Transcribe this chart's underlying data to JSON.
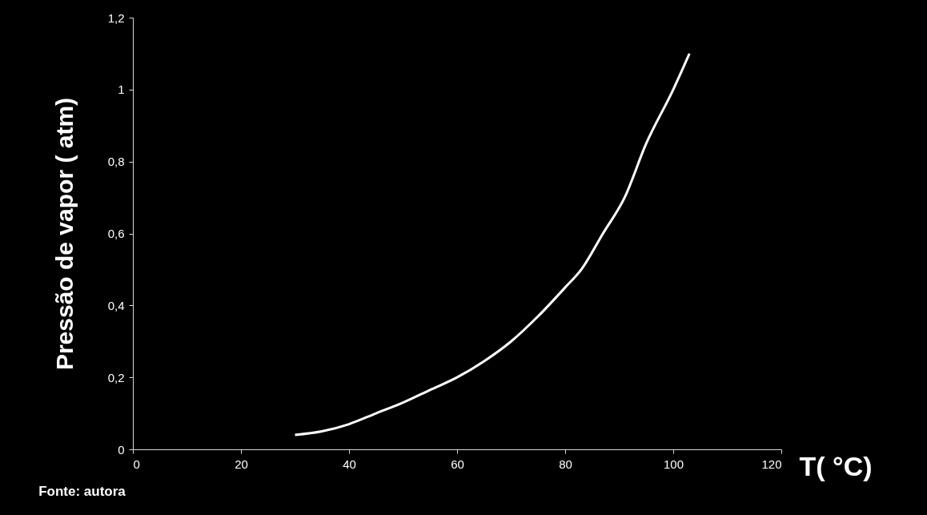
{
  "chart_data": {
    "type": "line",
    "xlabel": "T( °C)",
    "ylabel": "Pressão de vapor ( atm)",
    "annotations": [
      "Fonte: autora"
    ],
    "x": [
      30,
      35,
      40,
      45,
      50,
      55,
      60,
      65,
      70,
      75,
      80,
      83,
      87,
      91,
      95,
      100,
      103
    ],
    "series": [
      {
        "color": "#ffffff",
        "values": [
          0.04,
          0.05,
          0.07,
          0.1,
          0.13,
          0.165,
          0.2,
          0.245,
          0.3,
          0.37,
          0.45,
          0.5,
          0.6,
          0.7,
          0.85,
          1.0,
          1.1
        ]
      }
    ],
    "xlim": [
      0,
      120
    ],
    "xticks": [
      0,
      20,
      40,
      60,
      80,
      100,
      120
    ],
    "ylim": [
      0,
      1.2
    ],
    "yticks": [
      0,
      {
        "value": 0.2,
        "label": "0,2"
      },
      {
        "value": 0.4,
        "label": "0,4"
      },
      {
        "value": 0.6,
        "label": "0,6"
      },
      {
        "value": 0.8,
        "label": "0,8"
      },
      1,
      {
        "value": 1.2,
        "label": "1,2"
      }
    ],
    "grid": false,
    "marker": "none",
    "line_style": "solid"
  }
}
